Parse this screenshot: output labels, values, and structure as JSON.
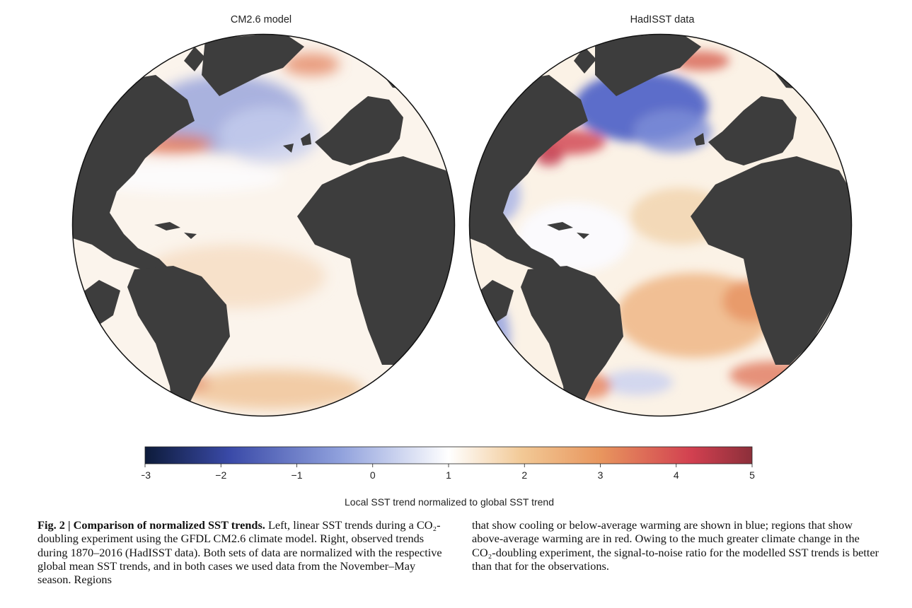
{
  "panels": {
    "left_title": "CM2.6 model",
    "right_title": "HadISST data"
  },
  "colorbar": {
    "ticks": [
      "−3",
      "−2",
      "−1",
      "0",
      "1",
      "2",
      "3",
      "4",
      "5"
    ],
    "label": "Local SST trend normalized to global SST trend",
    "colors": [
      "#0d1b3a",
      "#3a4aa8",
      "#8fa0dc",
      "#ffffff",
      "#f2c996",
      "#e8965e",
      "#d24050",
      "#8c2f3a"
    ]
  },
  "caption": {
    "fig_label": "Fig. 2 | Comparison of normalized SST trends.",
    "left_body": "Left, linear SST trends during a CO₂-doubling experiment using the GFDL CM2.6 climate model. Right, observed trends during 1870–2016 (HadISST data). Both sets of data are normalized with the respective global mean SST trends, and in both cases we used data from the November–May season. Regions",
    "right_body": "that show cooling or below-average warming are shown in blue; regions that show above-average warming are in red. Owing to the much greater climate change in the CO₂-doubling experiment, the signal-to-noise ratio for the modelled SST trends is better than that for the observations."
  },
  "colors": {
    "land": "#3d3d3d",
    "ocean_base": "#fbf3ea"
  }
}
